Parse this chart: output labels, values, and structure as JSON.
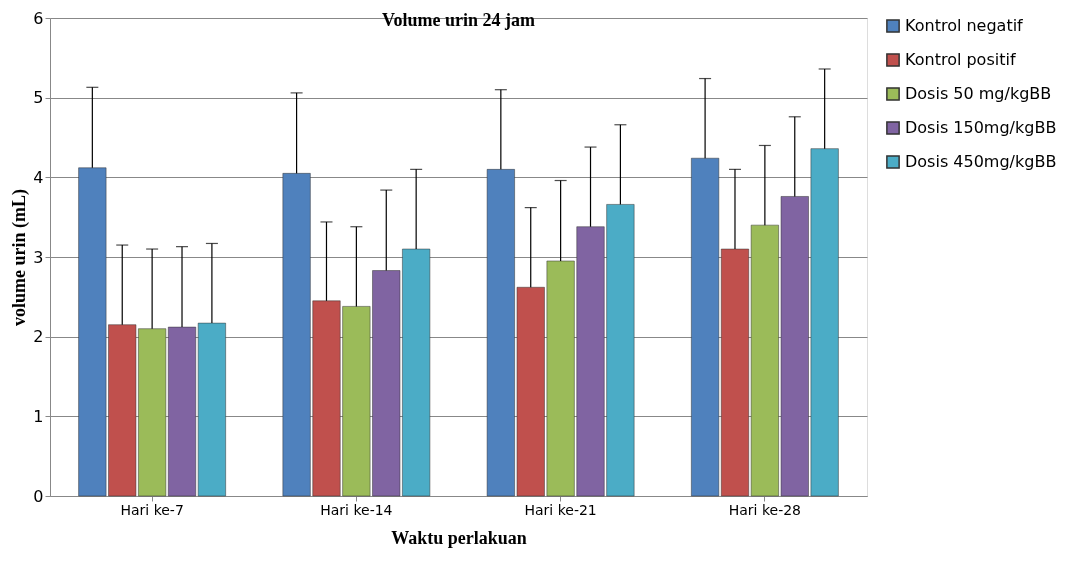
{
  "chart_data": {
    "type": "bar",
    "title": "Volume urin 24 jam",
    "xlabel": "Waktu perlakuan",
    "ylabel": "volume  urin (mL)",
    "categories": [
      "Hari ke-7",
      "Hari ke-14",
      "Hari ke-21",
      "Hari ke-28"
    ],
    "series": [
      {
        "name": "Kontrol negatif",
        "color": "#4f81bd",
        "values": [
          4.12,
          4.05,
          4.1,
          4.24
        ],
        "errors": [
          [
            4.12,
            5.13
          ],
          [
            4.05,
            5.06
          ],
          [
            4.1,
            5.1
          ],
          [
            4.24,
            5.24
          ]
        ]
      },
      {
        "name": "Kontrol positif",
        "color": "#c0504d",
        "values": [
          2.15,
          2.45,
          2.62,
          3.1
        ],
        "errors": [
          [
            2.15,
            3.15
          ],
          [
            2.45,
            3.44
          ],
          [
            2.62,
            3.62
          ],
          [
            3.1,
            4.1
          ]
        ]
      },
      {
        "name": "Dosis 50 mg/kgBB",
        "color": "#9bbb59",
        "values": [
          2.1,
          2.38,
          2.95,
          3.4
        ],
        "errors": [
          [
            2.1,
            3.1
          ],
          [
            2.38,
            3.38
          ],
          [
            2.95,
            3.96
          ],
          [
            3.4,
            4.4
          ]
        ]
      },
      {
        "name": "Dosis 150mg/kgBB",
        "color": "#8064a2",
        "values": [
          2.12,
          2.83,
          3.38,
          3.76
        ],
        "errors": [
          [
            2.12,
            3.13
          ],
          [
            2.83,
            3.84
          ],
          [
            3.38,
            4.38
          ],
          [
            3.76,
            4.76
          ]
        ]
      },
      {
        "name": "Dosis 450mg/kgBB",
        "color": "#4bacc6",
        "values": [
          2.17,
          3.1,
          3.66,
          4.36
        ],
        "errors": [
          [
            2.17,
            3.17
          ],
          [
            3.1,
            4.1
          ],
          [
            3.66,
            4.66
          ],
          [
            4.36,
            5.36
          ]
        ]
      }
    ],
    "ylim": [
      0,
      6
    ],
    "yticks": [
      0,
      1,
      2,
      3,
      4,
      5,
      6
    ],
    "grid": "y",
    "legend": "right"
  }
}
